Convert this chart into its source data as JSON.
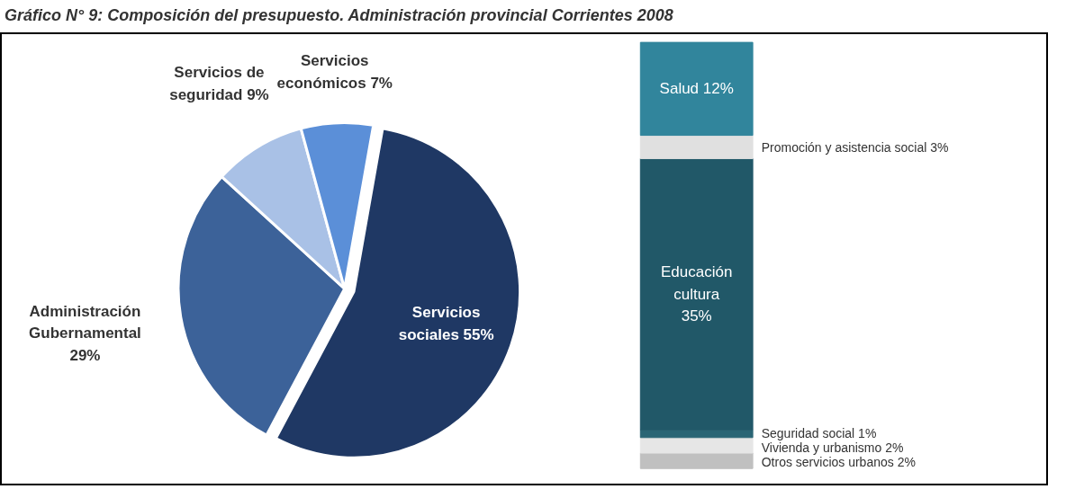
{
  "chart_data": [
    {
      "type": "pie",
      "title": "Gráfico N° 9: Composición del presupuesto. Administración provincial Corrientes 2008",
      "categories": [
        "Servicios sociales",
        "Administración Gubernamental",
        "Servicios de seguridad",
        "Servicios económicos"
      ],
      "values": [
        55,
        29,
        9,
        7
      ],
      "colors": [
        "#1f3864",
        "#3c6299",
        "#a9c1e6",
        "#5b8fd8"
      ],
      "value_labels": [
        "55%",
        "29%",
        "9%",
        "7%"
      ]
    },
    {
      "type": "bar",
      "stacked": true,
      "categories": [
        null
      ],
      "series": [
        {
          "name": "Otros servicios urbanos",
          "color": "#c0c0c0",
          "values": [
            2
          ],
          "value_labels": [
            "2%"
          ]
        },
        {
          "name": "Vivienda y urbanismo",
          "color": "#e6e6e6",
          "values": [
            2
          ],
          "value_labels": [
            "2%"
          ]
        },
        {
          "name": "Seguridad social",
          "color": "#2a6575",
          "values": [
            1
          ],
          "value_labels": [
            "1%"
          ]
        },
        {
          "name": "Educación cultura",
          "color": "#215868",
          "values": [
            35
          ],
          "value_labels": [
            "35%"
          ]
        },
        {
          "name": "Promoción y asistencia social",
          "color": "#e0e0e0",
          "values": [
            3
          ],
          "value_labels": [
            "3%"
          ]
        },
        {
          "name": "Salud",
          "color": "#31859c",
          "values": [
            12
          ],
          "value_labels": [
            "12%"
          ]
        }
      ]
    }
  ]
}
